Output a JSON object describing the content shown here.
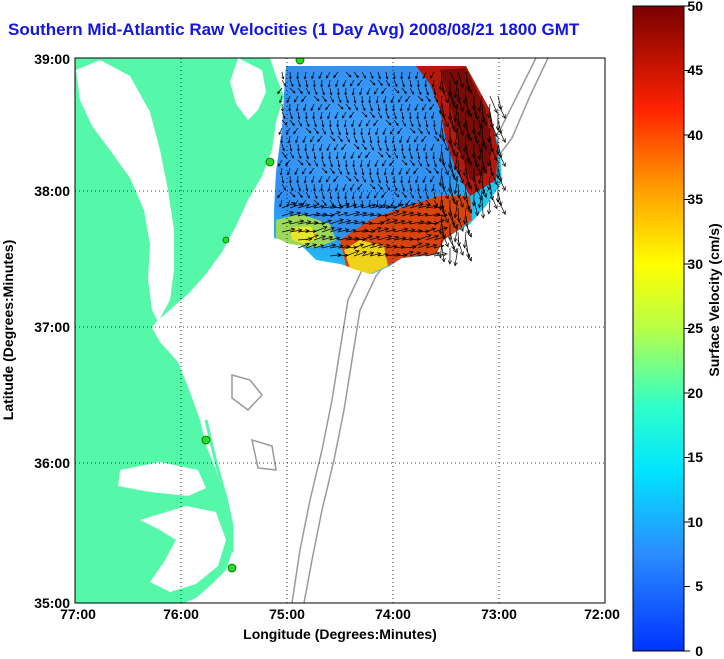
{
  "title": "Southern Mid-Atlantic Raw Velocities (1 Day Avg) 2008/08/21 1800 GMT",
  "axes": {
    "xlabel": "Longitude (Degrees:Minutes)",
    "ylabel": "Latitude (Degrees:Minutes)",
    "x_ticks": [
      "77:00",
      "76:00",
      "75:00",
      "74:00",
      "73:00",
      "72:00"
    ],
    "y_ticks": [
      "39:00",
      "38:00",
      "37:00",
      "36:00",
      "35:00"
    ],
    "grid": "dotted"
  },
  "colorbar": {
    "label": "Surface Velocity (cm/s)",
    "ticks": [
      "50",
      "45",
      "40",
      "35",
      "30",
      "25",
      "20",
      "15",
      "10",
      "5",
      "0"
    ],
    "min": 0,
    "max": 50,
    "colormap": "jet"
  },
  "colors": {
    "land": "#55f7a8",
    "water": "#ffffff",
    "title": "#1414e6",
    "bathymetry": "#999999",
    "station": "#22dd22"
  }
}
